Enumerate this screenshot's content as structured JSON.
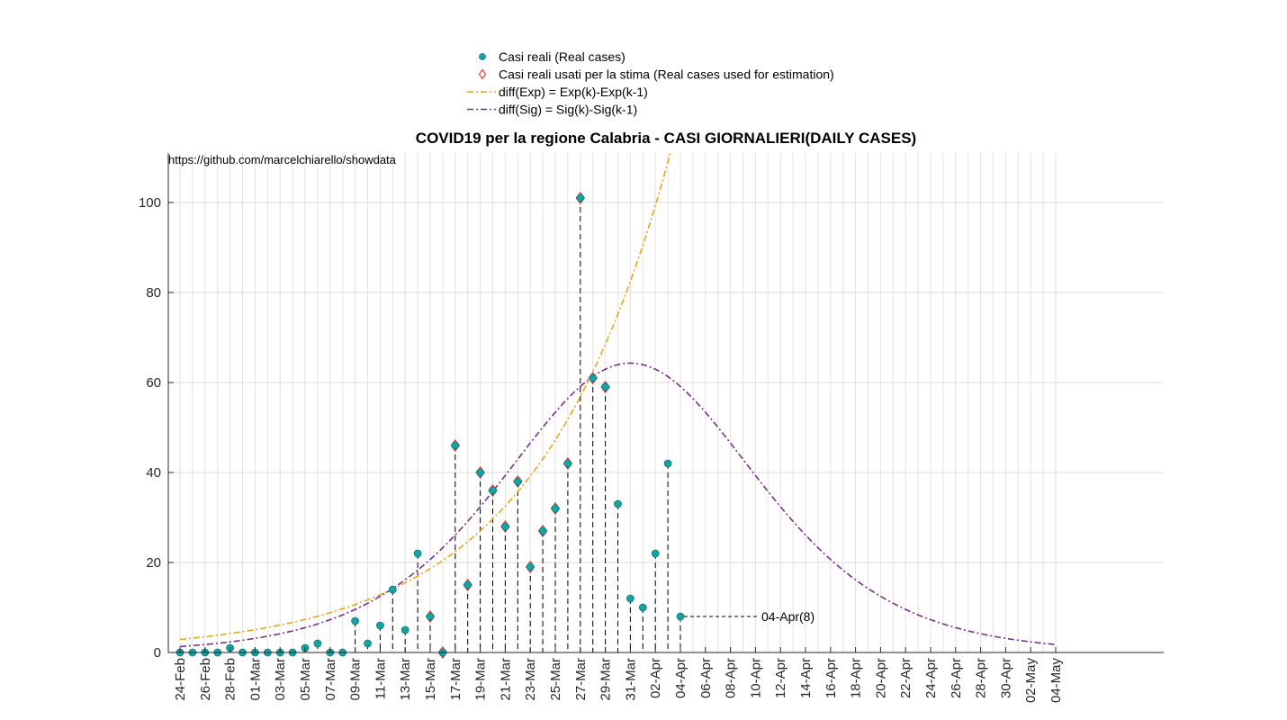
{
  "chart_data": {
    "type": "line",
    "title": "COVID19 per la regione Calabria - CASI GIORNALIERI(DAILY CASES)",
    "source_note": "https://github.com/marcelchiarello/showdata",
    "xlabel": "",
    "ylabel": "",
    "ylim": [
      0,
      110
    ],
    "yticks": [
      0,
      20,
      40,
      60,
      80,
      100
    ],
    "grid": true,
    "legend_position": "top",
    "x_start": "2020-02-24",
    "x_end": "2020-05-04",
    "xtick_labels": [
      "24-Feb",
      "26-Feb",
      "28-Feb",
      "01-Mar",
      "03-Mar",
      "05-Mar",
      "07-Mar",
      "09-Mar",
      "11-Mar",
      "13-Mar",
      "15-Mar",
      "17-Mar",
      "19-Mar",
      "21-Mar",
      "23-Mar",
      "25-Mar",
      "27-Mar",
      "29-Mar",
      "31-Mar",
      "02-Apr",
      "04-Apr",
      "06-Apr",
      "08-Apr",
      "10-Apr",
      "12-Apr",
      "14-Apr",
      "16-Apr",
      "18-Apr",
      "20-Apr",
      "22-Apr",
      "24-Apr",
      "26-Apr",
      "28-Apr",
      "30-Apr",
      "02-May",
      "04-May"
    ],
    "series": [
      {
        "name": "Casi reali (Real cases)",
        "kind": "points",
        "color": "#17a3a3",
        "dates": [
          "24-Feb",
          "25-Feb",
          "26-Feb",
          "27-Feb",
          "28-Feb",
          "29-Feb",
          "01-Mar",
          "02-Mar",
          "03-Mar",
          "04-Mar",
          "05-Mar",
          "06-Mar",
          "07-Mar",
          "08-Mar",
          "09-Mar",
          "10-Mar",
          "11-Mar",
          "12-Mar",
          "13-Mar",
          "14-Mar",
          "15-Mar",
          "16-Mar",
          "17-Mar",
          "18-Mar",
          "19-Mar",
          "20-Mar",
          "21-Mar",
          "22-Mar",
          "23-Mar",
          "24-Mar",
          "25-Mar",
          "26-Mar",
          "27-Mar",
          "28-Mar",
          "29-Mar",
          "30-Mar",
          "31-Mar",
          "01-Apr",
          "02-Apr",
          "03-Apr",
          "04-Apr"
        ],
        "values": [
          0,
          0,
          0,
          0,
          1,
          0,
          0,
          0,
          0,
          0,
          1,
          2,
          0,
          0,
          7,
          2,
          6,
          14,
          5,
          22,
          8,
          0,
          46,
          15,
          40,
          36,
          28,
          38,
          19,
          27,
          32,
          42,
          101,
          61,
          59,
          33,
          12,
          10,
          22,
          42,
          8
        ]
      },
      {
        "name": "Casi reali usati per la stima (Real cases used for estimation)",
        "kind": "markers",
        "color": "#e8312a",
        "dates": [
          "15-Mar",
          "16-Mar",
          "17-Mar",
          "18-Mar",
          "19-Mar",
          "20-Mar",
          "21-Mar",
          "22-Mar",
          "23-Mar",
          "24-Mar",
          "25-Mar",
          "26-Mar",
          "27-Mar",
          "28-Mar",
          "29-Mar"
        ],
        "values": [
          8,
          0,
          46,
          15,
          40,
          36,
          28,
          38,
          19,
          27,
          32,
          42,
          101,
          61,
          59
        ]
      },
      {
        "name": "diff(Exp) = Exp(k)-Exp(k-1)",
        "kind": "curve",
        "color": "#eba51c",
        "model": {
          "a": 2.9,
          "r": 0.093,
          "x_from": "24-Feb",
          "x_to": "04-May"
        }
      },
      {
        "name": "diff(Sig) = Sig(k)-Sig(k-1)",
        "kind": "curve",
        "color": "#7b2d8e",
        "model": {
          "peak": 64.3,
          "peak_date": "31-Mar",
          "k": 0.146,
          "x_from": "24-Feb",
          "x_to": "04-May"
        }
      }
    ],
    "annotation": {
      "date": "04-Apr",
      "value": 8,
      "text": "04-Apr(8)"
    }
  }
}
